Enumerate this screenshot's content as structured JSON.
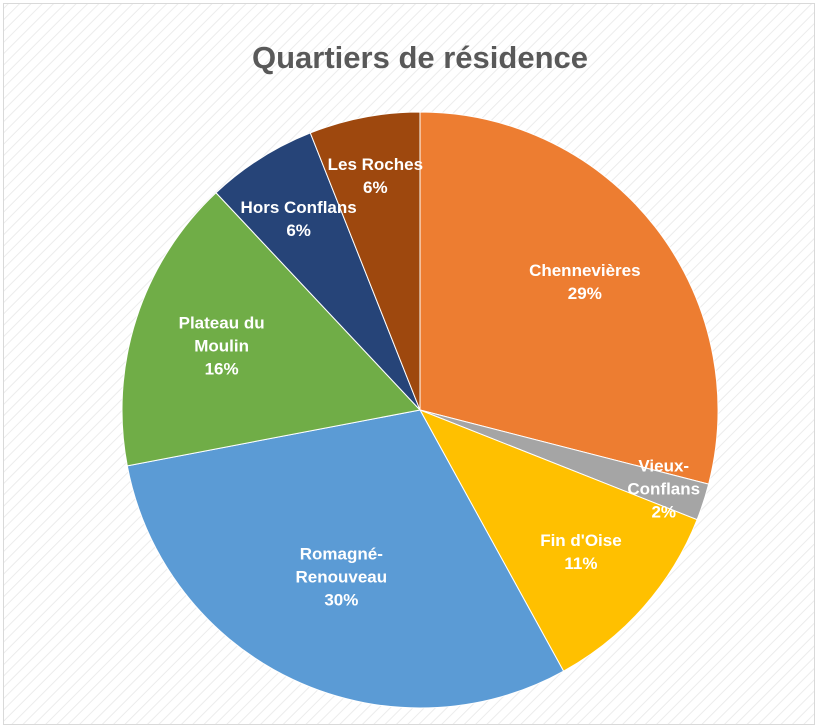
{
  "chart_data": {
    "type": "pie",
    "title": "Quartiers de résidence",
    "categories": [
      "Chennevières",
      "Vieux-Conflans",
      "Fin d'Oise",
      "Romagné-Renouveau",
      "Plateau du Moulin",
      "Hors Conflans",
      "Les Roches"
    ],
    "values": [
      29,
      2,
      11,
      30,
      16,
      6,
      6
    ],
    "value_labels": [
      "29%",
      "2%",
      "11%",
      "30%",
      "16%",
      "6%",
      "6%"
    ],
    "colors": [
      "#ed7d31",
      "#a5a5a5",
      "#ffc000",
      "#5b9bd5",
      "#70ad47",
      "#264478",
      "#9e480e"
    ]
  }
}
